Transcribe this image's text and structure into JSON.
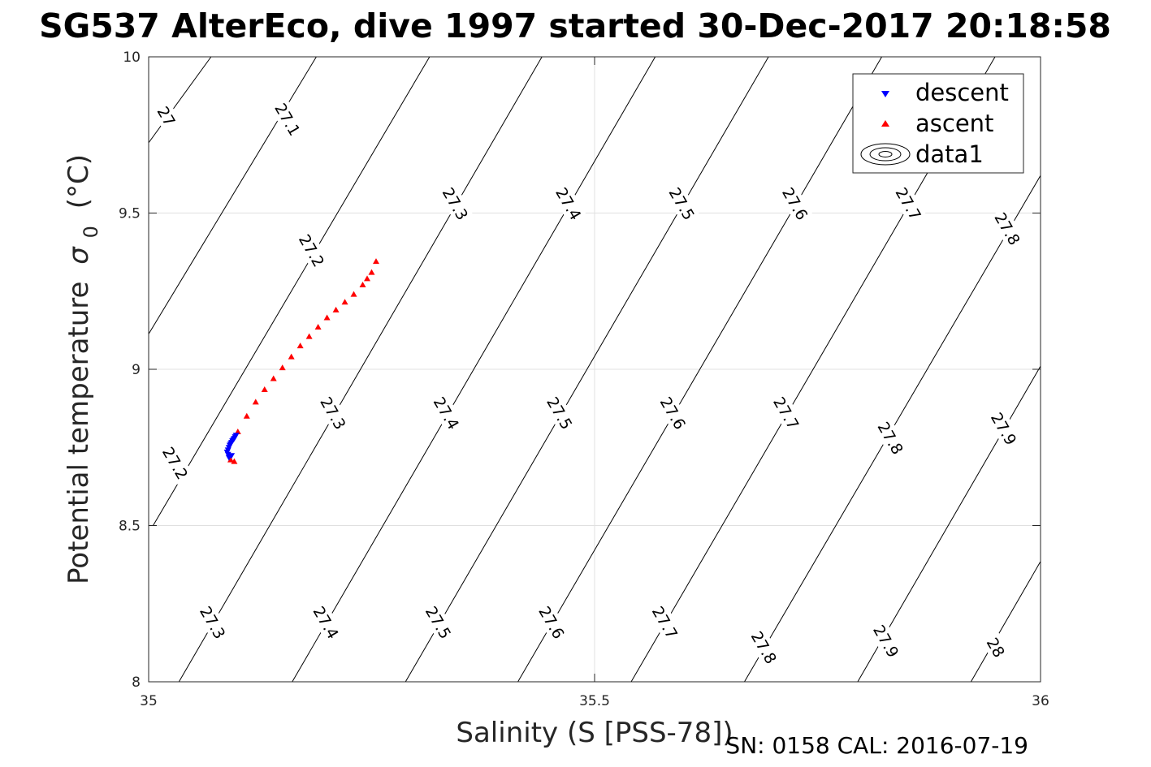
{
  "chart_data": {
    "type": "scatter",
    "title": "SG537 AlterEco, dive 1997 started 30-Dec-2017 20:18:58",
    "xlabel": "Salinity (S [PSS-78])",
    "ylabel": "Potential temperature",
    "ylabel_symbol": "σ",
    "ylabel_subscript": "0",
    "ylabel_unit": "(°C)",
    "xlim": [
      35,
      36
    ],
    "ylim": [
      8,
      10
    ],
    "xticks": [
      {
        "value": 35,
        "label": "35"
      },
      {
        "value": 35.5,
        "label": "35.5"
      },
      {
        "value": 36,
        "label": "36"
      }
    ],
    "yticks": [
      {
        "value": 8,
        "label": "8"
      },
      {
        "value": 8.5,
        "label": "8.5"
      },
      {
        "value": 9,
        "label": "9"
      },
      {
        "value": 9.5,
        "label": "9.5"
      },
      {
        "value": 10,
        "label": "10"
      }
    ],
    "grid": true,
    "legend_position": "top-right",
    "legend": [
      {
        "label": "descent",
        "marker": "triangle-down",
        "color": "#0000ff"
      },
      {
        "label": "ascent",
        "marker": "triangle-up",
        "color": "#ff0000"
      },
      {
        "label": "data1",
        "marker": "contour"
      }
    ],
    "series": [
      {
        "name": "descent",
        "color": "#0000ff",
        "marker": "triangle-down",
        "x": [
          35.088,
          35.089,
          35.09,
          35.091,
          35.092,
          35.093,
          35.094,
          35.095,
          35.096,
          35.097,
          35.098,
          35.093,
          35.09,
          35.089
        ],
        "y": [
          8.735,
          8.742,
          8.75,
          8.757,
          8.762,
          8.766,
          8.771,
          8.775,
          8.779,
          8.784,
          8.789,
          8.724,
          8.718,
          8.728
        ]
      },
      {
        "name": "ascent",
        "color": "#ff0000",
        "marker": "triangle-up",
        "x": [
          35.092,
          35.096,
          35.1,
          35.11,
          35.12,
          35.13,
          35.14,
          35.15,
          35.16,
          35.17,
          35.18,
          35.19,
          35.2,
          35.21,
          35.22,
          35.23,
          35.24,
          35.245,
          35.25,
          35.255
        ],
        "y": [
          8.71,
          8.705,
          8.8,
          8.85,
          8.895,
          8.935,
          8.97,
          9.005,
          9.04,
          9.075,
          9.105,
          9.135,
          9.165,
          9.19,
          9.215,
          9.24,
          9.27,
          9.29,
          9.31,
          9.345
        ]
      }
    ],
    "isopycnals": [
      {
        "label": "27",
        "x": [
          35.0,
          35.07
        ],
        "y": [
          9.725,
          10.0
        ]
      },
      {
        "label": "27.1",
        "x": [
          35.0,
          35.188
        ],
        "y": [
          9.113,
          10.0
        ]
      },
      {
        "label": "27.2",
        "x": [
          35.005,
          35.315
        ],
        "y": [
          8.5,
          10.0
        ]
      },
      {
        "label": "27.3",
        "x": [
          35.034,
          35.441
        ],
        "y": [
          8.0,
          10.0
        ]
      },
      {
        "label": "27.4",
        "x": [
          35.161,
          35.568
        ],
        "y": [
          8.0,
          10.0
        ]
      },
      {
        "label": "27.5",
        "x": [
          35.288,
          35.695
        ],
        "y": [
          8.0,
          10.0
        ]
      },
      {
        "label": "27.6",
        "x": [
          35.414,
          35.822
        ],
        "y": [
          8.0,
          10.0
        ]
      },
      {
        "label": "27.7",
        "x": [
          35.541,
          35.949
        ],
        "y": [
          8.0,
          10.0
        ]
      },
      {
        "label": "27.8",
        "x": [
          35.668,
          36.0
        ],
        "y": [
          8.0,
          9.62
        ]
      },
      {
        "label": "27.9",
        "x": [
          35.795,
          36.0
        ],
        "y": [
          8.0,
          9.01
        ]
      },
      {
        "label": "28",
        "x": [
          35.922,
          36.0
        ],
        "y": [
          8.0,
          8.385
        ]
      }
    ],
    "isopycnal_labels": [
      {
        "label": "27",
        "x": 35.02,
        "y": 9.81
      },
      {
        "label": "27.1",
        "x": 35.156,
        "y": 9.8
      },
      {
        "label": "27.2",
        "x": 35.03,
        "y": 8.7
      },
      {
        "label": "27.2",
        "x": 35.183,
        "y": 9.38
      },
      {
        "label": "27.3",
        "x": 35.072,
        "y": 8.19
      },
      {
        "label": "27.3",
        "x": 35.207,
        "y": 8.86
      },
      {
        "label": "27.3",
        "x": 35.344,
        "y": 9.53
      },
      {
        "label": "27.4",
        "x": 35.199,
        "y": 8.19
      },
      {
        "label": "27.4",
        "x": 35.334,
        "y": 8.86
      },
      {
        "label": "27.4",
        "x": 35.471,
        "y": 9.53
      },
      {
        "label": "27.5",
        "x": 35.325,
        "y": 8.19
      },
      {
        "label": "27.5",
        "x": 35.461,
        "y": 8.86
      },
      {
        "label": "27.5",
        "x": 35.598,
        "y": 9.53
      },
      {
        "label": "27.6",
        "x": 35.452,
        "y": 8.19
      },
      {
        "label": "27.6",
        "x": 35.588,
        "y": 8.86
      },
      {
        "label": "27.6",
        "x": 35.725,
        "y": 9.53
      },
      {
        "label": "27.7",
        "x": 35.579,
        "y": 8.19
      },
      {
        "label": "27.7",
        "x": 35.715,
        "y": 8.86
      },
      {
        "label": "27.7",
        "x": 35.852,
        "y": 9.53
      },
      {
        "label": "27.8",
        "x": 35.69,
        "y": 8.11
      },
      {
        "label": "27.8",
        "x": 35.832,
        "y": 8.78
      },
      {
        "label": "27.8",
        "x": 35.963,
        "y": 9.45
      },
      {
        "label": "27.9",
        "x": 35.827,
        "y": 8.13
      },
      {
        "label": "27.9",
        "x": 35.959,
        "y": 8.81
      },
      {
        "label": "28",
        "x": 35.95,
        "y": 8.11
      }
    ]
  },
  "footer": {
    "sn_cal": "SN: 0158  CAL: 2016-07-19"
  }
}
